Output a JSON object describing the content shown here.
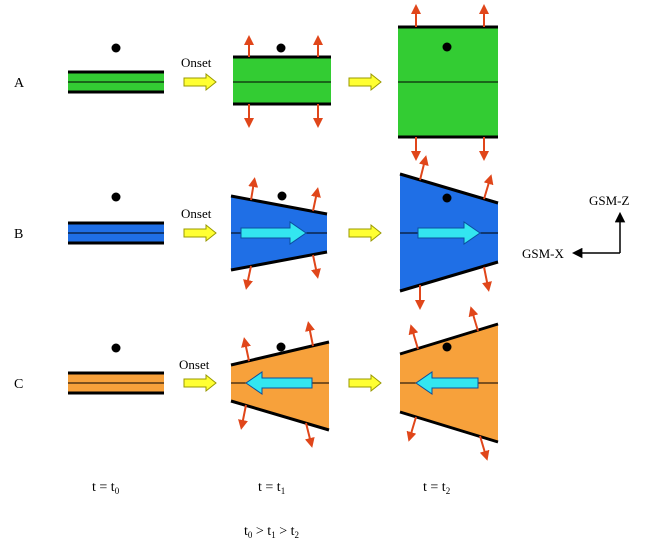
{
  "rows": [
    {
      "label": "A",
      "onset": "Onset",
      "color": "#33cc33",
      "flow": "none"
    },
    {
      "label": "B",
      "onset": "Onset",
      "color": "#1f6fe6",
      "flow": "right"
    },
    {
      "label": "C",
      "onset": "Onset",
      "color": "#f7a13b",
      "flow": "left"
    }
  ],
  "flow_arrow_color": "#33e6f0",
  "expansion_arrow_color": "#e0461a",
  "transition_arrow_color": "#ffff33",
  "time_labels": [
    {
      "main": "t = t",
      "sub": "0"
    },
    {
      "main": "t = t",
      "sub": "1"
    },
    {
      "main": "t = t",
      "sub": "2"
    }
  ],
  "ordering": {
    "t0": "t",
    "s0": "0",
    "gt1": " > t",
    "s1": "1",
    "gt2": " > t",
    "s2": "2"
  },
  "axes": {
    "z": "GSM-Z",
    "x": "GSM-X"
  }
}
